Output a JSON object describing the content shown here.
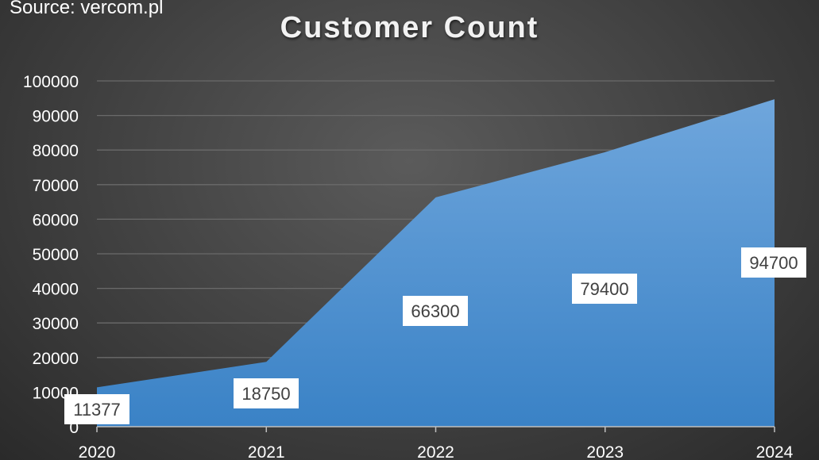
{
  "source_label": "Source: vercom.pl",
  "chart_data": {
    "type": "area",
    "title": "Customer Count",
    "xlabel": "",
    "ylabel": "",
    "categories": [
      "2020",
      "2021",
      "2022",
      "2023",
      "2024"
    ],
    "series": [
      {
        "values": [
          11377,
          18750,
          66300,
          79400,
          94700
        ]
      }
    ],
    "data_labels": [
      "11377",
      "18750",
      "66300",
      "79400",
      "94700"
    ],
    "ylim": [
      0,
      100000
    ],
    "yticks": [
      0,
      10000,
      20000,
      30000,
      40000,
      50000,
      60000,
      70000,
      80000,
      90000,
      100000
    ],
    "ytick_labels": [
      "0",
      "10000",
      "20000",
      "30000",
      "40000",
      "50000",
      "60000",
      "70000",
      "80000",
      "90000",
      "100000"
    ],
    "grid": true,
    "legend": "none",
    "colors": {
      "area_top": "#6fa6dc",
      "area_bottom": "#3a82c6",
      "background": "#404040",
      "grid": "#6a6a6a",
      "text": "#ffffff"
    }
  }
}
